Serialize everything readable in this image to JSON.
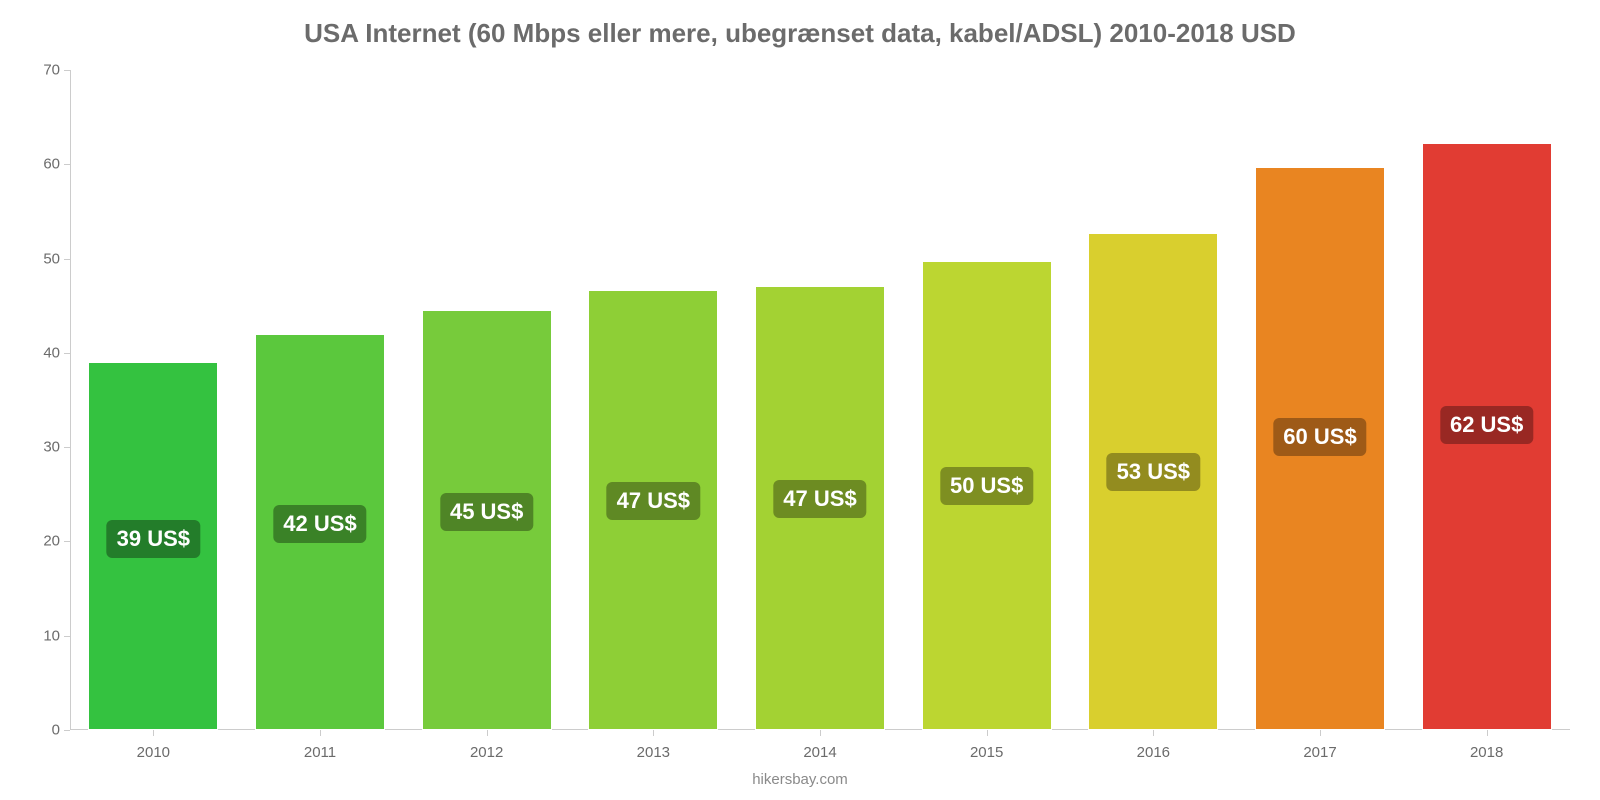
{
  "chart": {
    "type": "bar",
    "title": "USA Internet (60 Mbps eller mere, ubegrænset data, kabel/ADSL) 2010-2018 USD",
    "title_fontsize": 26,
    "title_color": "#6b6b6b",
    "source": "hikersbay.com",
    "source_fontsize": 15,
    "source_color": "#8a8a8a",
    "background_color": "#ffffff",
    "axis_color": "#cccccc",
    "tick_label_color": "#6b6b6b",
    "tick_fontsize": 15,
    "ylim": [
      0,
      70
    ],
    "ytick_step": 10,
    "yticks": [
      0,
      10,
      20,
      30,
      40,
      50,
      60,
      70
    ],
    "categories": [
      "2010",
      "2011",
      "2012",
      "2013",
      "2014",
      "2015",
      "2016",
      "2017",
      "2018"
    ],
    "values": [
      39,
      42,
      44.5,
      46.7,
      47.1,
      49.7,
      52.7,
      59.7,
      62.3
    ],
    "value_labels": [
      "39 US$",
      "42 US$",
      "45 US$",
      "47 US$",
      "47 US$",
      "50 US$",
      "53 US$",
      "60 US$",
      "62 US$"
    ],
    "bar_colors": [
      "#34c240",
      "#5bc83d",
      "#77cb3b",
      "#8ecf36",
      "#a3d233",
      "#bcd631",
      "#d9cf2e",
      "#e98521",
      "#e13c33"
    ],
    "badge_colors": [
      "#237d2a",
      "#3a8227",
      "#4f8526",
      "#5f8924",
      "#6d8c22",
      "#7e8f21",
      "#938c1f",
      "#9e5a17",
      "#992823"
    ],
    "badge_fontsize": 22,
    "bar_width": 0.78
  }
}
